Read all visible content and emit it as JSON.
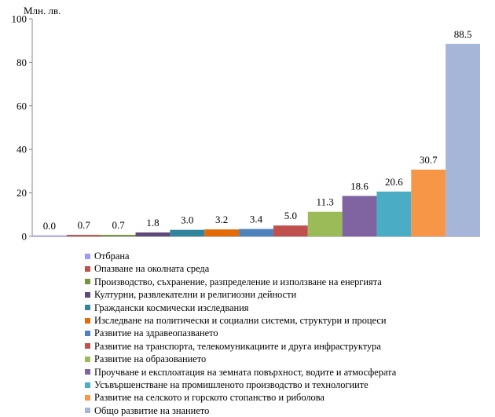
{
  "chart_data": {
    "type": "bar",
    "ylabel": "Млн. лв.",
    "ylim": [
      0,
      100
    ],
    "yticks": [
      0,
      20,
      40,
      60,
      80,
      100
    ],
    "grid": false,
    "legend_position": "bottom",
    "categories": [
      "Отбрана",
      "Опазване на околната среда",
      "Производство, съхранение, разпределение и използване на енергията",
      "Културни, развлекателни и религиозни дейности",
      "Граждански космически изследвания",
      "Изследване на политически и социални системи, структури и процеси",
      "Развитие на здравеопазването",
      "Развитие на транспорта, телекомуникациите и друга инфраструктура",
      "Развитие на образованието",
      "Проучване и експлоатация на земната повърхност, водите и атмосферата",
      "Усъвършенстване на промишленото производство и технологиите",
      "Развитие на селското и горското стопанство и риболова",
      "Общо развитие на знанието"
    ],
    "values": [
      0.0,
      0.7,
      0.7,
      1.8,
      3.0,
      3.2,
      3.4,
      5.0,
      11.3,
      18.6,
      20.6,
      30.7,
      88.5
    ],
    "value_labels": [
      "0.0",
      "0.7",
      "0.7",
      "1.8",
      "3.0",
      "3.2",
      "3.4",
      "5.0",
      "11.3",
      "18.6",
      "20.6",
      "30.7",
      "88.5"
    ],
    "colors": [
      "#9999ff",
      "#c0504d",
      "#76923c",
      "#5f497a",
      "#31849b",
      "#e36c09",
      "#4f81bd",
      "#c0504d",
      "#9bbb59",
      "#8064a2",
      "#4bacc6",
      "#f79646",
      "#a6b6d9"
    ]
  }
}
